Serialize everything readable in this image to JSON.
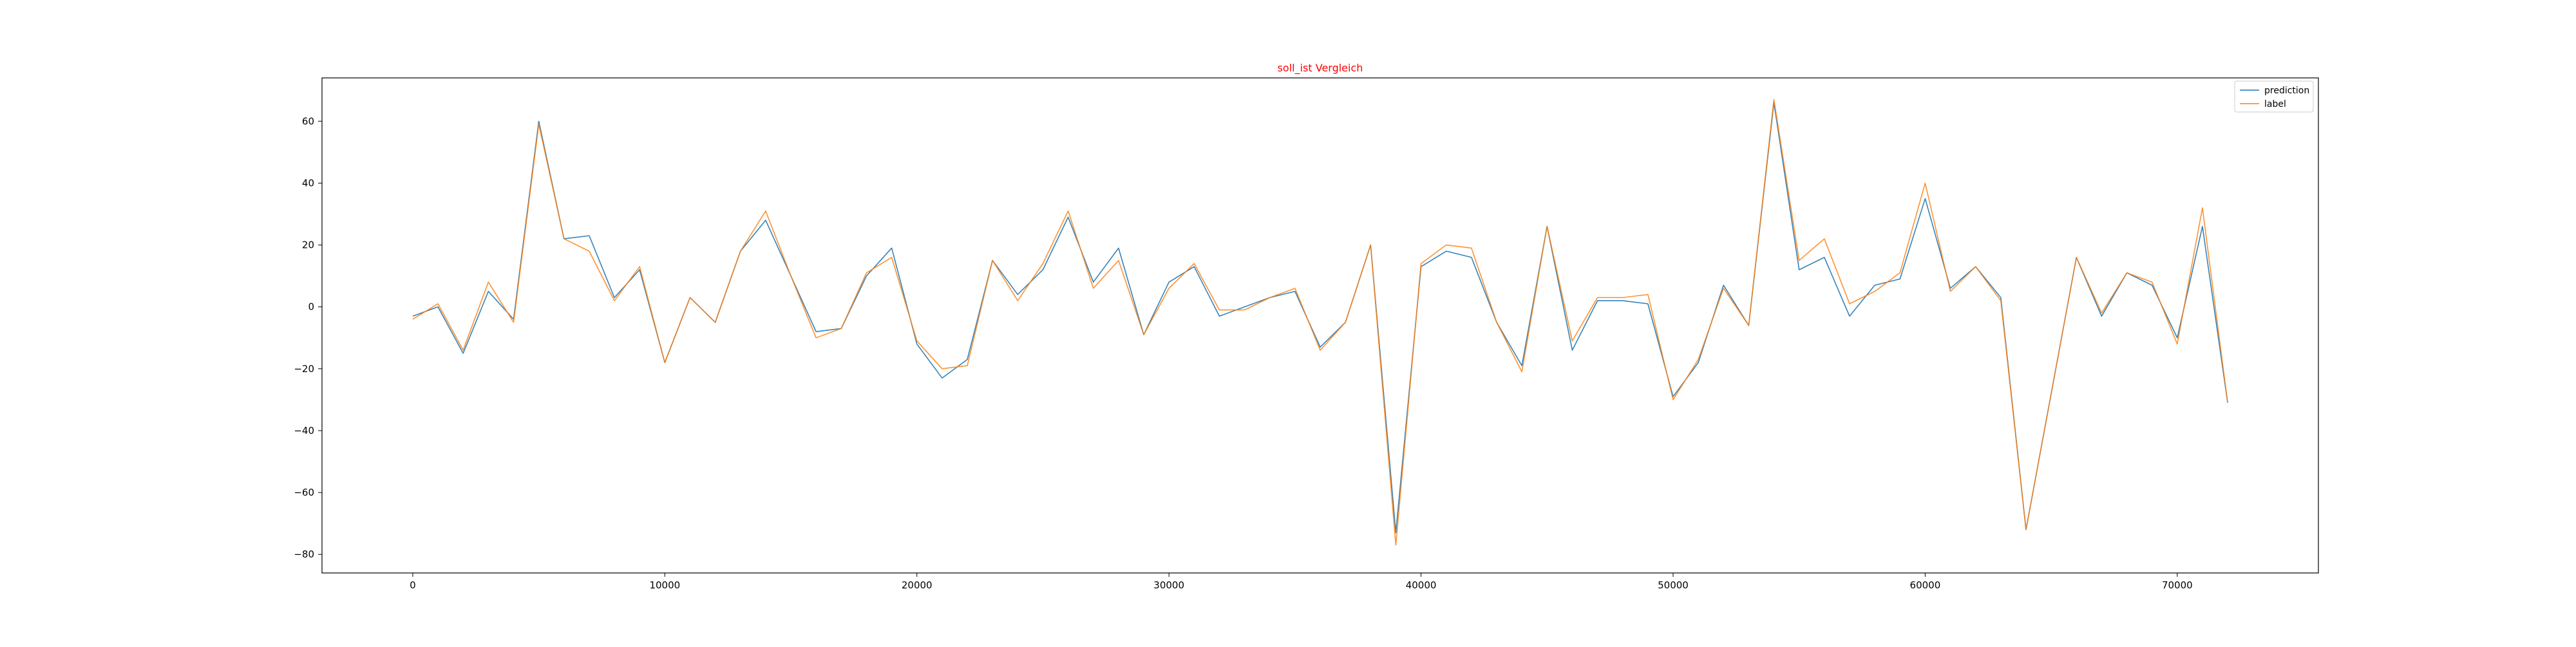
{
  "chart_data": {
    "type": "line",
    "title": "soll_ist Vergleich",
    "title_color": "#ff0000",
    "xlabel": "",
    "ylabel": "",
    "xlim": [
      -3600,
      75600
    ],
    "ylim": [
      -86,
      74
    ],
    "xticks": [
      0,
      10000,
      20000,
      30000,
      40000,
      50000,
      60000,
      70000
    ],
    "yticks": [
      -80,
      -60,
      -40,
      -20,
      0,
      20,
      40,
      60
    ],
    "grid": false,
    "legend_position": "top-right",
    "x": [
      0,
      1000,
      2000,
      3000,
      4000,
      5000,
      6000,
      7000,
      8000,
      9000,
      10000,
      11000,
      12000,
      13000,
      14000,
      15000,
      16000,
      17000,
      18000,
      19000,
      20000,
      21000,
      22000,
      23000,
      24000,
      25000,
      26000,
      27000,
      28000,
      29000,
      30000,
      31000,
      32000,
      33000,
      34000,
      35000,
      36000,
      37000,
      38000,
      39000,
      40000,
      41000,
      42000,
      43000,
      44000,
      45000,
      46000,
      47000,
      48000,
      49000,
      50000,
      51000,
      52000,
      53000,
      54000,
      55000,
      56000,
      57000,
      58000,
      59000,
      60000,
      61000,
      62000,
      63000,
      64000,
      65000,
      66000,
      67000,
      68000,
      69000,
      70000,
      71000,
      72000
    ],
    "series": [
      {
        "name": "prediction",
        "color": "#1f77b4",
        "values": [
          -3,
          0,
          -15,
          5,
          -4,
          60,
          22,
          23,
          3,
          12,
          -18,
          3,
          -5,
          18,
          28,
          10,
          -8,
          -7,
          10,
          19,
          -12,
          -23,
          -17,
          15,
          4,
          12,
          29,
          8,
          19,
          -9,
          8,
          13,
          -3,
          0,
          3,
          5,
          -13,
          -5,
          20,
          -73,
          13,
          18,
          16,
          -5,
          -19,
          26,
          -14,
          2,
          2,
          1,
          -29,
          -18,
          7,
          -6,
          66,
          12,
          16,
          -3,
          7,
          9,
          35,
          6,
          13,
          3,
          -72,
          -28,
          16,
          -3,
          11,
          7,
          -10,
          26,
          -31
        ]
      },
      {
        "name": "label",
        "color": "#ff7f0e",
        "values": [
          -4,
          1,
          -14,
          8,
          -5,
          59,
          22,
          18,
          2,
          13,
          -18,
          3,
          -5,
          18,
          31,
          10,
          -10,
          -7,
          11,
          16,
          -11,
          -20,
          -19,
          15,
          2,
          14,
          31,
          6,
          15,
          -9,
          6,
          14,
          -1,
          -1,
          3,
          6,
          -14,
          -5,
          20,
          -77,
          14,
          20,
          19,
          -5,
          -21,
          26,
          -11,
          3,
          3,
          4,
          -30,
          -17,
          6,
          -6,
          67,
          15,
          22,
          1,
          5,
          11,
          40,
          5,
          13,
          2,
          -72,
          -28,
          16,
          -2,
          11,
          8,
          -12,
          32,
          -31
        ]
      }
    ]
  }
}
